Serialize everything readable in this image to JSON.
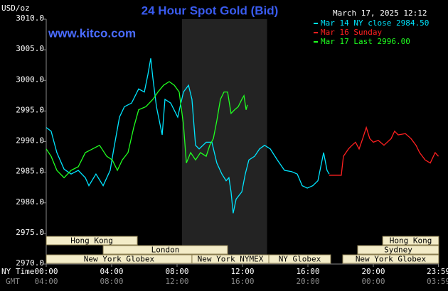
{
  "chart_data": {
    "type": "line",
    "title": "24 Hour Spot Gold (Bid)",
    "site": "www.kitco.com",
    "y_label": "USD/oz",
    "timestamp": "March 17, 2025 12:12",
    "x_row_labels": [
      "NY Time",
      "GMT"
    ],
    "xlim": [
      0,
      24
    ],
    "ylim": [
      2970,
      3010
    ],
    "yticks": [
      {
        "value": 2970,
        "label": "2970.0"
      },
      {
        "value": 2975,
        "label": "2975.0"
      },
      {
        "value": 2980,
        "label": "2980.0"
      },
      {
        "value": 2985,
        "label": "2985.0"
      },
      {
        "value": 2990,
        "label": "2990.0"
      },
      {
        "value": 2995,
        "label": "2995.0"
      },
      {
        "value": 3000,
        "label": "3000.0"
      },
      {
        "value": 3005,
        "label": "3005.0"
      },
      {
        "value": 3010,
        "label": "3010.0"
      }
    ],
    "xticks": [
      {
        "value": 0,
        "label": "00:00"
      },
      {
        "value": 4,
        "label": "04:00"
      },
      {
        "value": 8,
        "label": "08:00"
      },
      {
        "value": 12,
        "label": "12:00"
      },
      {
        "value": 16,
        "label": "16:00"
      },
      {
        "value": 20,
        "label": "20:00"
      },
      {
        "value": 23.98,
        "label": "23:59"
      }
    ],
    "gmt_tick_labels": [
      "04:00",
      "08:00",
      "12:00",
      "16:00",
      "20:00",
      "00:00",
      "03:59"
    ],
    "highlight_range": [
      8.3,
      13.5
    ],
    "sessions": [
      [
        {
          "label": "Hong Kong",
          "start": 0,
          "end": 5.57
        },
        {
          "label": "Hong Kong",
          "start": 20.57,
          "end": 24
        }
      ],
      [
        {
          "label": "London",
          "start": 3.48,
          "end": 11.09
        },
        {
          "label": "Sydney",
          "start": 19.04,
          "end": 24
        }
      ],
      [
        {
          "label": "New York Globex",
          "start": 0,
          "end": 8.91
        },
        {
          "label": "New York NYMEX",
          "start": 8.91,
          "end": 13.61
        },
        {
          "label": "NY Globex",
          "start": 13.61,
          "end": 17.39
        },
        {
          "label": "New York Globex",
          "start": 18.13,
          "end": 24
        }
      ]
    ],
    "series": [
      {
        "name": "Mar 14 NY close 2984.50",
        "color": "#00e5ff",
        "x": [
          0,
          0.3,
          0.65,
          1.09,
          1.52,
          1.96,
          2.39,
          2.61,
          3.04,
          3.48,
          3.91,
          4.13,
          4.48,
          4.78,
          5.22,
          5.65,
          6.0,
          6.22,
          6.39,
          6.52,
          6.74,
          7.09,
          7.26,
          7.61,
          8.04,
          8.39,
          8.7,
          8.91,
          9.13,
          9.35,
          9.78,
          10.13,
          10.43,
          10.74,
          11.0,
          11.17,
          11.3,
          11.43,
          11.61,
          11.96,
          12.17,
          12.39,
          12.74,
          13.04,
          13.35,
          13.7,
          14.13,
          14.57,
          15.0,
          15.35,
          15.65,
          15.96,
          16.3,
          16.61,
          16.74,
          16.96,
          17.17,
          17.3
        ],
        "values": [
          2992.3,
          2991.7,
          2988.2,
          2985.5,
          2984.7,
          2985.3,
          2984.1,
          2982.8,
          2984.7,
          2982.8,
          2985.3,
          2988.8,
          2994.0,
          2995.7,
          2996.3,
          2998.6,
          2998.1,
          3001.0,
          3003.6,
          3000.4,
          2995.7,
          2991.1,
          2996.9,
          2996.3,
          2994.0,
          2998.1,
          2999.2,
          2996.9,
          2989.4,
          2988.8,
          2989.9,
          2989.9,
          2986.5,
          2984.7,
          2983.6,
          2984.1,
          2981.8,
          2978.3,
          2980.6,
          2981.8,
          2984.7,
          2987.0,
          2987.6,
          2988.8,
          2989.4,
          2988.8,
          2987.0,
          2985.3,
          2985.1,
          2984.7,
          2982.8,
          2982.4,
          2982.8,
          2983.6,
          2985.3,
          2988.2,
          2985.3,
          2984.7
        ]
      },
      {
        "name": "Mar 16 Sunday",
        "color": "#ff2020",
        "x": [
          17.3,
          18.04,
          18.17,
          18.48,
          18.7,
          18.91,
          19.13,
          19.35,
          19.57,
          19.78,
          20.0,
          20.3,
          20.65,
          21.09,
          21.3,
          21.52,
          21.96,
          22.3,
          22.61,
          22.83,
          23.17,
          23.48,
          23.78,
          23.98
        ],
        "values": [
          2984.5,
          2984.5,
          2987.6,
          2988.8,
          2989.4,
          2989.9,
          2988.8,
          2990.5,
          2992.3,
          2990.5,
          2989.9,
          2990.2,
          2989.4,
          2990.5,
          2991.7,
          2991.1,
          2991.3,
          2990.5,
          2989.4,
          2988.2,
          2987.0,
          2986.5,
          2988.2,
          2987.6
        ]
      },
      {
        "name": "Mar 17 Last 2996.00",
        "color": "#20ff20",
        "x": [
          0,
          0.3,
          0.65,
          1.09,
          1.52,
          1.96,
          2.39,
          2.83,
          3.26,
          3.7,
          4.04,
          4.35,
          4.65,
          5.0,
          5.35,
          5.65,
          6.09,
          6.52,
          6.83,
          7.17,
          7.52,
          7.83,
          8.13,
          8.39,
          8.57,
          8.83,
          9.13,
          9.43,
          9.78,
          10.0,
          10.22,
          10.43,
          10.65,
          10.87,
          11.09,
          11.3,
          11.52,
          11.74,
          11.96,
          12.09,
          12.22,
          12.3
        ],
        "values": [
          2988.8,
          2987.6,
          2985.3,
          2984.1,
          2985.3,
          2985.9,
          2988.2,
          2988.8,
          2989.4,
          2987.6,
          2987.0,
          2985.3,
          2987.0,
          2988.2,
          2992.3,
          2995.2,
          2995.7,
          2996.9,
          2998.1,
          2999.2,
          2999.8,
          2999.2,
          2998.1,
          2992.8,
          2986.5,
          2988.2,
          2987.0,
          2988.2,
          2987.6,
          2989.4,
          2990.5,
          2993.4,
          2996.9,
          2998.1,
          2998.1,
          2994.6,
          2995.2,
          2995.7,
          2996.9,
          2997.5,
          2995.2,
          2996.0
        ]
      }
    ]
  }
}
